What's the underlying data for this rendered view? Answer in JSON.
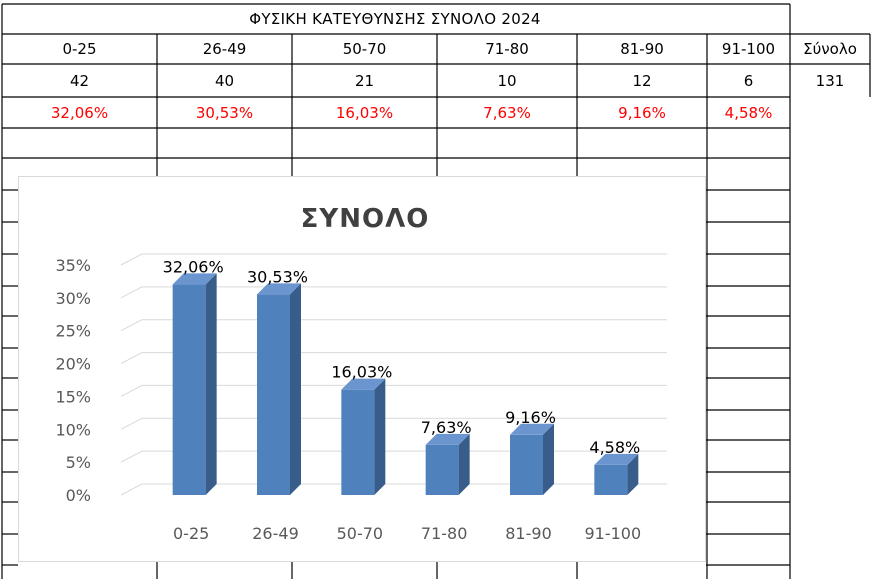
{
  "table": {
    "title": "ΦΥΣΙΚΗ ΚΑΤΕΥΘΥΝΣΗΣ ΣΥΝΟΛΟ 2024",
    "headers": [
      "0-25",
      "26-49",
      "50-70",
      "71-80",
      "81-90",
      "91-100",
      "Σύνολο"
    ],
    "counts": [
      "42",
      "40",
      "21",
      "10",
      "12",
      "6",
      "131"
    ],
    "percents": [
      "32,06%",
      "30,53%",
      "16,03%",
      "7,63%",
      "9,16%",
      "4,58%"
    ]
  },
  "colors": {
    "bar": "#4f81bd",
    "bar_side": "#385d8a",
    "bar_top": "#6b95cf",
    "percent_text": "#ff0000"
  },
  "chart_data": {
    "type": "bar",
    "title": "ΣΥΝΟΛΟ",
    "categories": [
      "0-25",
      "26-49",
      "50-70",
      "71-80",
      "81-90",
      "91-100"
    ],
    "values": [
      32.06,
      30.53,
      16.03,
      7.63,
      9.16,
      4.58
    ],
    "data_labels": [
      "32,06%",
      "30,53%",
      "16,03%",
      "7,63%",
      "9,16%",
      "4,58%"
    ],
    "yticks": [
      "0%",
      "5%",
      "10%",
      "15%",
      "20%",
      "25%",
      "30%",
      "35%"
    ],
    "ylim": [
      0,
      35
    ],
    "grid": true,
    "xlabel": "",
    "ylabel": ""
  }
}
